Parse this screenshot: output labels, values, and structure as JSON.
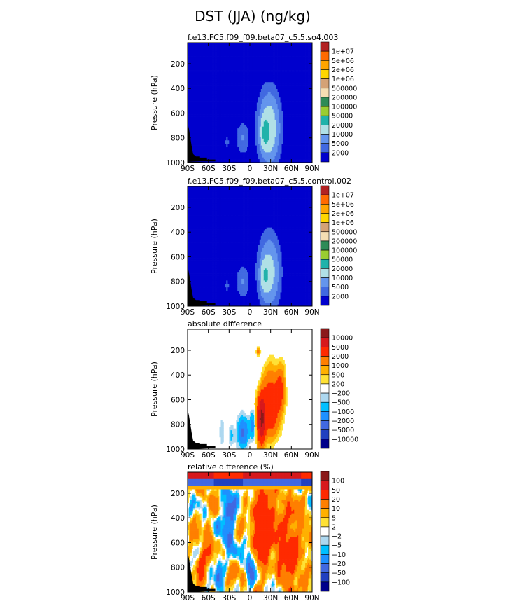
{
  "title": "DST (JJA) (ng/kg)",
  "chart_data": [
    {
      "type": "heatmap",
      "title": "f.e13.FC5.f09_f09.beta07_c5.5.so4.003",
      "ylabel": "Pressure (hPa)",
      "xlabel": "",
      "xticks": [
        "90S",
        "60S",
        "30S",
        "0",
        "30N",
        "60N",
        "90N"
      ],
      "yticks": [
        "200",
        "400",
        "600",
        "800",
        "1000"
      ],
      "xlim": [
        -90,
        90
      ],
      "ylim": [
        1000,
        30
      ],
      "field": "concentration",
      "legend_levels": [
        "1e+07",
        "5e+06",
        "2e+06",
        "1e+06",
        "500000",
        "200000",
        "100000",
        "50000",
        "20000",
        "10000",
        "5000",
        "2000"
      ],
      "legend_colors": [
        "#b22222",
        "#ff6a00",
        "#ffa500",
        "#ffd700",
        "#d4a276",
        "#f5deb3",
        "#2e8b57",
        "#9acd32",
        "#20b2aa",
        "#b0e0e6",
        "#6495ed",
        "#4169e1",
        "#0000cd"
      ]
    },
    {
      "type": "heatmap",
      "title": "f.e13.FC5.f09_f09.beta07_c5.5.control.002",
      "ylabel": "Pressure (hPa)",
      "xlabel": "",
      "xticks": [
        "90S",
        "60S",
        "30S",
        "0",
        "30N",
        "60N",
        "90N"
      ],
      "yticks": [
        "200",
        "400",
        "600",
        "800",
        "1000"
      ],
      "xlim": [
        -90,
        90
      ],
      "ylim": [
        1000,
        30
      ],
      "field": "concentration",
      "legend_levels": [
        "1e+07",
        "5e+06",
        "2e+06",
        "1e+06",
        "500000",
        "200000",
        "100000",
        "50000",
        "20000",
        "10000",
        "5000",
        "2000"
      ],
      "legend_colors": [
        "#b22222",
        "#ff6a00",
        "#ffa500",
        "#ffd700",
        "#d4a276",
        "#f5deb3",
        "#2e8b57",
        "#9acd32",
        "#20b2aa",
        "#b0e0e6",
        "#6495ed",
        "#4169e1",
        "#0000cd"
      ]
    },
    {
      "type": "heatmap",
      "title": "absolute difference",
      "ylabel": "Pressure (hPa)",
      "xlabel": "",
      "xticks": [
        "90S",
        "60S",
        "30S",
        "0",
        "30N",
        "60N",
        "90N"
      ],
      "yticks": [
        "200",
        "400",
        "600",
        "800",
        "1000"
      ],
      "xlim": [
        -90,
        90
      ],
      "ylim": [
        1000,
        30
      ],
      "field": "absdiff",
      "legend_levels": [
        "10000",
        "5000",
        "2000",
        "1000",
        "500",
        "200",
        "−200",
        "−500",
        "−1000",
        "−2000",
        "−5000",
        "−10000"
      ],
      "legend_colors": [
        "#8b1a1a",
        "#d7191c",
        "#ff2a00",
        "#ff7f00",
        "#ffb000",
        "#ffe135",
        "#ffffff",
        "#add8f0",
        "#00bfff",
        "#1e90ff",
        "#4169e1",
        "#2040c0",
        "#00008b"
      ]
    },
    {
      "type": "heatmap",
      "title": "relative difference (%)",
      "ylabel": "Pressure (hPa)",
      "xlabel": "",
      "xticks": [
        "90S",
        "60S",
        "30S",
        "0",
        "30N",
        "60N",
        "90N"
      ],
      "yticks": [
        "200",
        "400",
        "600",
        "800",
        "1000"
      ],
      "xlim": [
        -90,
        90
      ],
      "ylim": [
        1000,
        30
      ],
      "field": "reldiff",
      "legend_levels": [
        "100",
        "50",
        "20",
        "10",
        "5",
        "2",
        "−2",
        "−5",
        "−10",
        "−20",
        "−50",
        "−100"
      ],
      "legend_colors": [
        "#8b1a1a",
        "#d7191c",
        "#ff2a00",
        "#ff7f00",
        "#ffb000",
        "#ffe135",
        "#ffffff",
        "#add8f0",
        "#00bfff",
        "#1e90ff",
        "#4169e1",
        "#2040c0",
        "#00008b"
      ]
    }
  ]
}
